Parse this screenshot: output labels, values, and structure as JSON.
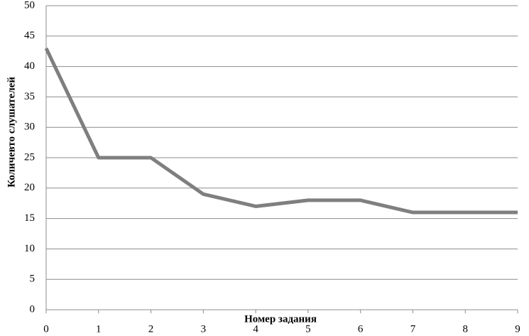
{
  "chart_data": {
    "type": "line",
    "x_label": "Номер задания",
    "y_label": "Количевто слушателей",
    "x": [
      0,
      1,
      2,
      3,
      4,
      5,
      6,
      7,
      8,
      9
    ],
    "series": [
      {
        "name": null,
        "color": "#7f7f7f",
        "values": [
          43,
          25,
          25,
          19,
          17,
          18,
          18,
          16,
          16,
          16
        ]
      }
    ],
    "xlim": [
      0,
      9
    ],
    "xticks": [
      0,
      1,
      2,
      3,
      4,
      5,
      6,
      7,
      8,
      9
    ],
    "ylim": [
      0,
      50
    ],
    "yticks": [
      0,
      5,
      10,
      15,
      20,
      25,
      30,
      35,
      40,
      45,
      50
    ],
    "grid": true
  }
}
